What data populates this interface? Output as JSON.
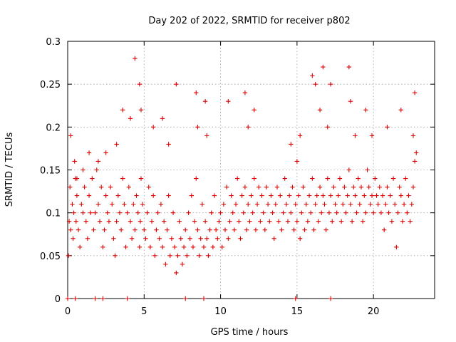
{
  "chart_data": {
    "type": "scatter",
    "title": "Day 202 of 2022, SRMTID for receiver p802",
    "xlabel": "GPS time / hours",
    "ylabel": "SRMTID / TECUs",
    "xlim": [
      0,
      24
    ],
    "ylim": [
      0,
      0.3
    ],
    "xticks": [
      0,
      5,
      10,
      15,
      20
    ],
    "xtick_labels": [
      "0",
      "5",
      "10",
      "15",
      "20"
    ],
    "yticks": [
      0,
      0.05,
      0.1,
      0.15,
      0.2,
      0.25,
      0.3
    ],
    "ytick_labels": [
      "0",
      "0.05",
      "0.1",
      "0.15",
      "0.2",
      "0.25",
      "0.3"
    ],
    "grid": true,
    "marker": "+",
    "color": "#dd0000",
    "series": [
      {
        "name": "p802",
        "x": [
          0.05,
          0.1,
          0.15,
          0.2,
          0.3,
          0.35,
          0.4,
          0.45,
          0.5,
          0.55,
          0.6,
          0.7,
          0.8,
          0.9,
          1.0,
          1.1,
          1.2,
          1.3,
          1.4,
          1.5,
          1.6,
          1.7,
          1.8,
          1.9,
          2.0,
          2.1,
          2.2,
          2.3,
          2.4,
          2.5,
          2.6,
          2.7,
          2.8,
          2.9,
          3.0,
          3.1,
          3.2,
          3.3,
          3.4,
          3.5,
          3.6,
          3.7,
          3.8,
          3.9,
          4.0,
          4.1,
          4.2,
          4.3,
          4.4,
          4.5,
          4.6,
          4.7,
          4.75,
          4.8,
          4.9,
          5.0,
          5.1,
          5.2,
          5.3,
          5.4,
          5.5,
          5.6,
          5.7,
          5.8,
          5.9,
          6.0,
          6.1,
          6.2,
          6.3,
          6.4,
          6.5,
          6.6,
          6.7,
          6.8,
          6.9,
          7.0,
          7.1,
          7.2,
          7.3,
          7.4,
          7.5,
          7.6,
          7.7,
          7.8,
          7.9,
          8.0,
          8.1,
          8.2,
          8.3,
          8.4,
          8.5,
          8.6,
          8.7,
          8.8,
          8.9,
          9.0,
          9.1,
          9.2,
          9.3,
          9.4,
          9.5,
          9.6,
          9.7,
          9.8,
          9.9,
          10.0,
          10.1,
          10.2,
          10.3,
          10.4,
          10.5,
          10.6,
          10.7,
          10.8,
          10.9,
          11.0,
          11.1,
          11.2,
          11.3,
          11.4,
          11.5,
          11.6,
          11.7,
          11.8,
          11.9,
          12.0,
          12.1,
          12.2,
          12.3,
          12.4,
          12.5,
          12.6,
          12.7,
          12.8,
          12.9,
          13.0,
          13.1,
          13.2,
          13.3,
          13.4,
          13.5,
          13.6,
          13.7,
          13.8,
          13.9,
          14.0,
          14.1,
          14.2,
          14.3,
          14.4,
          14.5,
          14.6,
          14.7,
          14.8,
          14.9,
          15.0,
          15.1,
          15.2,
          15.3,
          15.4,
          15.5,
          15.6,
          15.7,
          15.8,
          15.9,
          16.0,
          16.1,
          16.2,
          16.3,
          16.4,
          16.5,
          16.6,
          16.7,
          16.8,
          16.9,
          17.0,
          17.1,
          17.2,
          17.3,
          17.4,
          17.5,
          17.6,
          17.7,
          17.8,
          17.9,
          18.0,
          18.1,
          18.2,
          18.3,
          18.4,
          18.5,
          18.6,
          18.7,
          18.8,
          18.9,
          19.0,
          19.1,
          19.2,
          19.3,
          19.4,
          19.5,
          19.6,
          19.7,
          19.8,
          19.9,
          20.0,
          20.1,
          20.2,
          20.3,
          20.4,
          20.5,
          20.6,
          20.7,
          20.8,
          20.9,
          21.0,
          21.1,
          21.2,
          21.3,
          21.4,
          21.5,
          21.6,
          21.7,
          21.8,
          21.9,
          22.0,
          22.1,
          22.2,
          22.3,
          22.4,
          22.5,
          22.6,
          22.7,
          22.8,
          0.2,
          0.6,
          1.0,
          1.4,
          2.0,
          2.5,
          3.2,
          3.6,
          4.1,
          4.4,
          4.7,
          4.8,
          5.6,
          6.2,
          6.6,
          7.1,
          8.4,
          8.5,
          9.0,
          9.1,
          10.5,
          11.6,
          11.8,
          12.2,
          14.6,
          15.0,
          15.2,
          16.0,
          16.2,
          16.5,
          16.7,
          17.0,
          17.2,
          18.4,
          18.5,
          18.8,
          19.5,
          19.9,
          20.9,
          21.8,
          22.6,
          22.7,
          0.0,
          0.5,
          1.8,
          2.3,
          3.9,
          7.7,
          8.9,
          14.9,
          17.2
        ],
        "y": [
          0.05,
          0.09,
          0.13,
          0.08,
          0.11,
          0.07,
          0.1,
          0.16,
          0.14,
          0.09,
          0.12,
          0.08,
          0.06,
          0.11,
          0.1,
          0.13,
          0.09,
          0.07,
          0.12,
          0.1,
          0.14,
          0.08,
          0.1,
          0.15,
          0.11,
          0.09,
          0.13,
          0.06,
          0.08,
          0.12,
          0.1,
          0.09,
          0.13,
          0.11,
          0.07,
          0.05,
          0.09,
          0.12,
          0.1,
          0.08,
          0.14,
          0.11,
          0.06,
          0.1,
          0.13,
          0.09,
          0.07,
          0.11,
          0.08,
          0.12,
          0.1,
          0.06,
          0.09,
          0.14,
          0.11,
          0.08,
          0.07,
          0.1,
          0.13,
          0.06,
          0.09,
          0.12,
          0.05,
          0.08,
          0.1,
          0.07,
          0.11,
          0.06,
          0.09,
          0.04,
          0.08,
          0.12,
          0.05,
          0.07,
          0.1,
          0.06,
          0.03,
          0.05,
          0.09,
          0.07,
          0.04,
          0.06,
          0.08,
          0.05,
          0.1,
          0.07,
          0.12,
          0.06,
          0.09,
          0.14,
          0.08,
          0.05,
          0.07,
          0.11,
          0.06,
          0.09,
          0.07,
          0.05,
          0.08,
          0.1,
          0.06,
          0.12,
          0.08,
          0.07,
          0.09,
          0.1,
          0.06,
          0.11,
          0.08,
          0.13,
          0.07,
          0.09,
          0.12,
          0.1,
          0.08,
          0.11,
          0.14,
          0.09,
          0.07,
          0.12,
          0.1,
          0.13,
          0.08,
          0.11,
          0.09,
          0.12,
          0.1,
          0.14,
          0.08,
          0.11,
          0.13,
          0.09,
          0.12,
          0.1,
          0.08,
          0.13,
          0.11,
          0.09,
          0.12,
          0.1,
          0.07,
          0.11,
          0.13,
          0.09,
          0.12,
          0.08,
          0.1,
          0.14,
          0.11,
          0.09,
          0.12,
          0.1,
          0.13,
          0.08,
          0.11,
          0.09,
          0.12,
          0.07,
          0.1,
          0.13,
          0.08,
          0.11,
          0.09,
          0.12,
          0.1,
          0.14,
          0.08,
          0.11,
          0.12,
          0.09,
          0.13,
          0.1,
          0.12,
          0.11,
          0.08,
          0.14,
          0.1,
          0.12,
          0.09,
          0.13,
          0.11,
          0.1,
          0.12,
          0.14,
          0.09,
          0.11,
          0.13,
          0.1,
          0.12,
          0.15,
          0.11,
          0.09,
          0.13,
          0.12,
          0.1,
          0.14,
          0.11,
          0.13,
          0.09,
          0.12,
          0.1,
          0.15,
          0.13,
          0.11,
          0.12,
          0.1,
          0.14,
          0.12,
          0.11,
          0.13,
          0.1,
          0.12,
          0.08,
          0.11,
          0.13,
          0.1,
          0.12,
          0.09,
          0.14,
          0.11,
          0.06,
          0.1,
          0.13,
          0.12,
          0.09,
          0.11,
          0.14,
          0.1,
          0.12,
          0.09,
          0.11,
          0.13,
          0.16,
          0.17,
          0.19,
          0.14,
          0.15,
          0.17,
          0.16,
          0.17,
          0.18,
          0.22,
          0.21,
          0.28,
          0.25,
          0.22,
          0.2,
          0.21,
          0.18,
          0.25,
          0.24,
          0.2,
          0.23,
          0.19,
          0.23,
          0.24,
          0.2,
          0.22,
          0.18,
          0.16,
          0.19,
          0.26,
          0.25,
          0.22,
          0.27,
          0.2,
          0.25,
          0.27,
          0.23,
          0.19,
          0.22,
          0.19,
          0.2,
          0.22,
          0.19,
          0.24,
          0.0,
          0.0,
          0.0,
          0.0,
          0.0,
          0.0,
          0.0,
          0.0,
          0.0
        ]
      }
    ]
  }
}
